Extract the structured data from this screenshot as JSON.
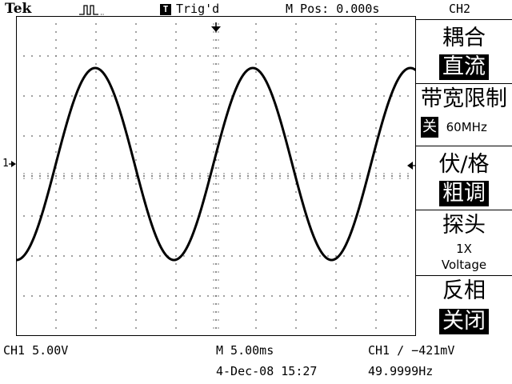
{
  "header": {
    "brand": "Tek",
    "trig_icon": "T",
    "trig_status": "Trig'd",
    "m_pos": "M Pos: 0.000s",
    "channel": "CH2"
  },
  "menu": {
    "coupling_title": "耦合",
    "coupling_value": "直流",
    "bw_limit_title": "带宽限制",
    "bw_limit_state": "关",
    "bw_limit_value": "60MHz",
    "volts_div_title": "伏/格",
    "volts_div_value": "粗调",
    "probe_title": "探头",
    "probe_factor": "1X",
    "probe_type": "Voltage",
    "invert_title": "反相",
    "invert_value": "关闭"
  },
  "footer": {
    "ch1_scale": "CH1  5.00V",
    "timebase": "M 5.00ms",
    "trigger_info": "CH1 ∕ −421mV",
    "date_time": "4-Dec-08 15:27",
    "frequency": "49.9999Hz"
  },
  "markers": {
    "ch1_label": "1"
  },
  "colors": {
    "background": "#ffffff",
    "trace": "#000000",
    "grid": "#000000"
  }
}
